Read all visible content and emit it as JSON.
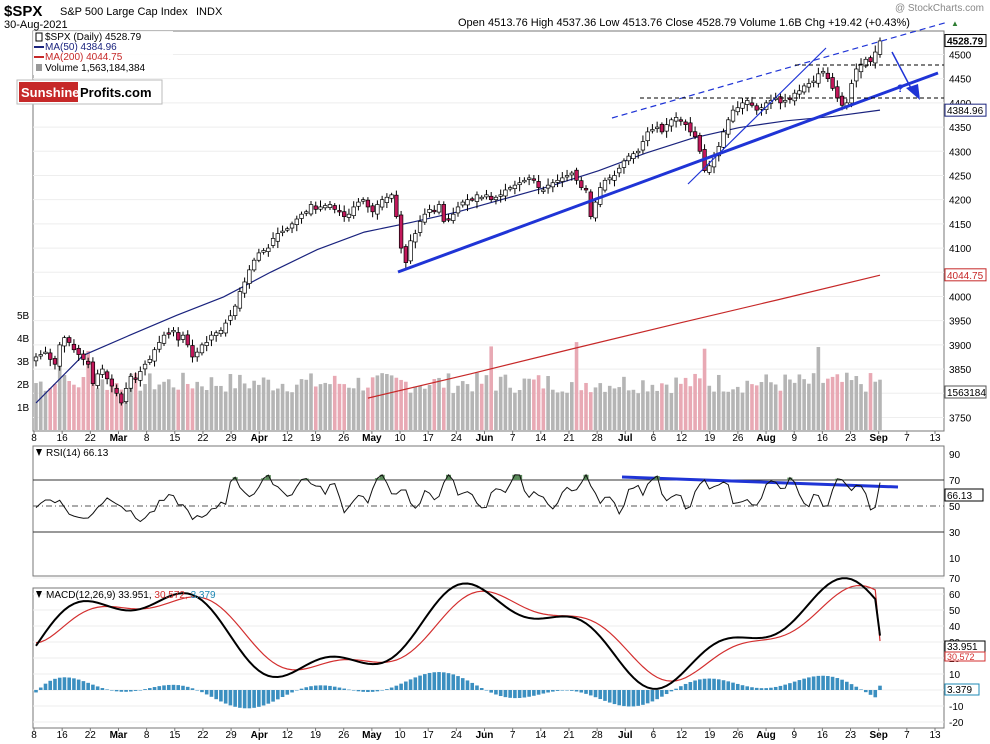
{
  "header": {
    "symbol": "$SPX",
    "name": "S&P 500 Large Cap Index",
    "exchange": "INDX",
    "date": "30-Aug-2021",
    "watermark": "@ StockCharts.com",
    "quote": "Open 4513.76  High 4537.36  Low 4513.76  Close 4528.79  Volume 1.6B  Chg +19.42 (+0.43%)",
    "quote_arrow": "▲"
  },
  "logo": {
    "part1": "Sunshine",
    "part2": "Profits.com"
  },
  "legend": [
    {
      "text": "$SPX (Daily) 4528.79",
      "color": "#000000",
      "marker": "candle"
    },
    {
      "text": "MA(50) 4384.96",
      "color": "#1a237e",
      "marker": "line"
    },
    {
      "text": "MA(200) 4044.75",
      "color": "#c62828",
      "marker": "line"
    },
    {
      "text": "Volume 1,563,184,384",
      "color": "#999999",
      "marker": "box"
    }
  ],
  "price_panel": {
    "ticks": [
      "4500",
      "4450",
      "4400",
      "4350",
      "4300",
      "4250",
      "4200",
      "4150",
      "4100",
      "4050",
      "4000",
      "3950",
      "3900",
      "3850",
      "3800",
      "3750"
    ],
    "badges": [
      {
        "text": "4528.79",
        "style": "dark"
      },
      {
        "text": "4384.96",
        "style": "blue"
      },
      {
        "text": "4044.75",
        "style": "red"
      },
      {
        "text": "1563184",
        "style": "grey"
      }
    ],
    "volume_ticks": [
      "5B",
      "4B",
      "3B",
      "2B",
      "1B"
    ],
    "annotation": "?"
  },
  "x_axis": [
    "8",
    "16",
    "22",
    "Mar",
    "8",
    "15",
    "22",
    "29",
    "Apr",
    "12",
    "19",
    "26",
    "May",
    "10",
    "17",
    "24",
    "Jun",
    "7",
    "14",
    "21",
    "28",
    "Jul",
    "6",
    "12",
    "19",
    "26",
    "Aug",
    "9",
    "16",
    "23",
    "Sep",
    "7",
    "13"
  ],
  "rsi_panel": {
    "title": "RSI(14) 66.13",
    "ticks": [
      "90",
      "70",
      "50",
      "30",
      "10"
    ],
    "badge": "66.13"
  },
  "macd_panel": {
    "title": "MACD(12,26,9)",
    "v1": "33.951,",
    "v2": "30.572,",
    "v3": "3.379",
    "ticks": [
      "70",
      "60",
      "50",
      "40",
      "30",
      "20",
      "10",
      "0",
      "-10",
      "-20"
    ],
    "badges": [
      "33.951",
      "30.572",
      "3.379"
    ]
  },
  "chart_data": {
    "type": "candlestick",
    "ylim": [
      3720,
      4545
    ],
    "closes": [
      3875,
      3880,
      3885,
      3870,
      3860,
      3900,
      3915,
      3905,
      3890,
      3880,
      3870,
      3860,
      3820,
      3840,
      3850,
      3830,
      3815,
      3800,
      3780,
      3810,
      3835,
      3830,
      3845,
      3860,
      3870,
      3890,
      3905,
      3920,
      3925,
      3930,
      3910,
      3920,
      3900,
      3875,
      3885,
      3900,
      3905,
      3920,
      3925,
      3930,
      3945,
      3960,
      3980,
      4010,
      4030,
      4055,
      4075,
      4090,
      4095,
      4100,
      4120,
      4130,
      4135,
      4140,
      4150,
      4160,
      4170,
      4175,
      4190,
      4180,
      4185,
      4188,
      4190,
      4180,
      4175,
      4165,
      4170,
      4185,
      4195,
      4200,
      4185,
      4175,
      4190,
      4200,
      4205,
      4210,
      4165,
      4100,
      4070,
      4115,
      4130,
      4155,
      4170,
      4180,
      4175,
      4190,
      4155,
      4160,
      4170,
      4185,
      4195,
      4200,
      4200,
      4210,
      4205,
      4210,
      4200,
      4205,
      4210,
      4220,
      4225,
      4230,
      4235,
      4240,
      4245,
      4240,
      4225,
      4220,
      4230,
      4235,
      4240,
      4245,
      4250,
      4255,
      4240,
      4225,
      4220,
      4165,
      4195,
      4225,
      4240,
      4245,
      4250,
      4265,
      4280,
      4290,
      4295,
      4300,
      4320,
      4340,
      4345,
      4350,
      4340,
      4355,
      4365,
      4370,
      4365,
      4355,
      4340,
      4330,
      4300,
      4260,
      4270,
      4290,
      4310,
      4340,
      4365,
      4385,
      4390,
      4400,
      4405,
      4395,
      4385,
      4390,
      4400,
      4405,
      4410,
      4400,
      4405,
      4410,
      4420,
      4425,
      4435,
      4440,
      4445,
      4460,
      4465,
      4450,
      4430,
      4410,
      4395,
      4400,
      4440,
      4470,
      4480,
      4490,
      4485,
      4505,
      4528
    ],
    "ma50": [
      3780,
      3878,
      3920,
      3961,
      3999,
      4050,
      4097,
      4133,
      4153,
      4175,
      4202,
      4229,
      4260,
      4296,
      4327,
      4349,
      4363,
      4372,
      4385
    ],
    "ma200": [
      3790,
      3840,
      3892,
      3943,
      3993,
      4044
    ],
    "rsi_last": 66.13,
    "macd": {
      "macd": 33.951,
      "signal": 30.572,
      "histogram": 3.379
    }
  }
}
